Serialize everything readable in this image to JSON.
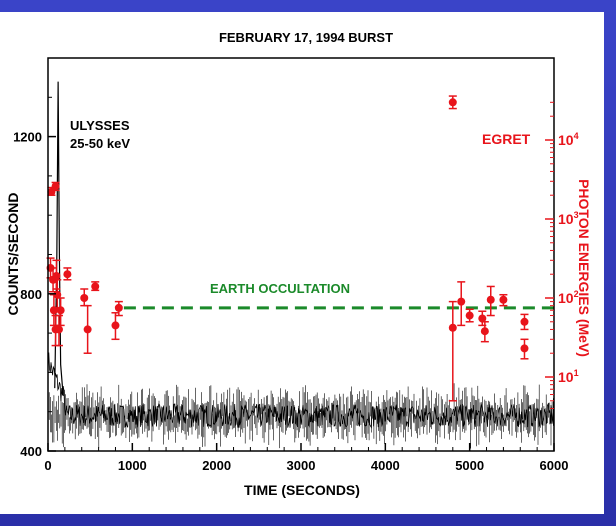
{
  "chart_data": {
    "type": "scatter",
    "title": "FEBRUARY 17, 1994 BURST",
    "xlabel": "TIME (SECONDS)",
    "ylabel": "COUNTS/SECOND",
    "y2label": "PHOTON ENERGIES (MeV)",
    "xlim": [
      0,
      6000
    ],
    "ylim": [
      400,
      1400
    ],
    "y2_scale": "log",
    "x_ticks": [
      "0",
      "1000",
      "2000",
      "3000",
      "4000",
      "5000",
      "6000"
    ],
    "x_tick_values": [
      0,
      1000,
      2000,
      3000,
      4000,
      5000,
      6000
    ],
    "y_ticks": [
      "400",
      "800",
      "1200"
    ],
    "y_tick_values": [
      400,
      800,
      1200
    ],
    "y2_ticks": [
      {
        "base": "10",
        "exp": "1",
        "value": 10
      },
      {
        "base": "10",
        "exp": "2",
        "value": 100
      },
      {
        "base": "10",
        "exp": "3",
        "value": 1000
      },
      {
        "base": "10",
        "exp": "4",
        "value": 10000
      }
    ],
    "annotations": {
      "ulysses_line1": "ULYSSES",
      "ulysses_line2": "25-50 keV",
      "egret": "EGRET",
      "earth_occultation": "EARTH OCCULTATION"
    },
    "earth_occultation": {
      "x_start": 900,
      "x_end": 6000,
      "y2": 75
    },
    "ulysses_baseline_counts": 490,
    "ulysses_peak": {
      "x": 120,
      "counts": 1340
    },
    "egret_points": [
      {
        "x": 40,
        "y2": 2200,
        "low": 2000,
        "high": 2500
      },
      {
        "x": 90,
        "y2": 2600,
        "low": 2300,
        "high": 2900
      },
      {
        "x": 30,
        "y2": 240,
        "low": 180,
        "high": 320
      },
      {
        "x": 60,
        "y2": 170,
        "low": 120,
        "high": 240
      },
      {
        "x": 100,
        "y2": 190,
        "low": 130,
        "high": 300
      },
      {
        "x": 110,
        "y2": 110,
        "low": 70,
        "high": 170
      },
      {
        "x": 70,
        "y2": 70,
        "low": 45,
        "high": 110
      },
      {
        "x": 150,
        "y2": 70,
        "low": 45,
        "high": 100
      },
      {
        "x": 90,
        "y2": 40,
        "low": 25,
        "high": 60
      },
      {
        "x": 130,
        "y2": 40,
        "low": 25,
        "high": 60
      },
      {
        "x": 230,
        "y2": 200,
        "low": 170,
        "high": 240
      },
      {
        "x": 430,
        "y2": 100,
        "low": 80,
        "high": 130
      },
      {
        "x": 560,
        "y2": 140,
        "low": 125,
        "high": 160
      },
      {
        "x": 470,
        "y2": 40,
        "low": 20,
        "high": 80
      },
      {
        "x": 840,
        "y2": 75,
        "low": 60,
        "high": 90
      },
      {
        "x": 800,
        "y2": 45,
        "low": 30,
        "high": 65
      },
      {
        "x": 4800,
        "y2": 30000,
        "low": 25000,
        "high": 36000
      },
      {
        "x": 4800,
        "y2": 42,
        "low": 5,
        "high": 90
      },
      {
        "x": 4900,
        "y2": 90,
        "low": 45,
        "high": 160
      },
      {
        "x": 5000,
        "y2": 60,
        "low": 50,
        "high": 72
      },
      {
        "x": 5150,
        "y2": 55,
        "low": 45,
        "high": 68
      },
      {
        "x": 5180,
        "y2": 38,
        "low": 28,
        "high": 50
      },
      {
        "x": 5250,
        "y2": 95,
        "low": 60,
        "high": 140
      },
      {
        "x": 5400,
        "y2": 95,
        "low": 80,
        "high": 110
      },
      {
        "x": 5650,
        "y2": 50,
        "low": 40,
        "high": 62
      },
      {
        "x": 5650,
        "y2": 23,
        "low": 17,
        "high": 30
      }
    ],
    "colors": {
      "egret": "#e8141b",
      "occultation": "#1b8a2a",
      "ulysses": "#000000",
      "frame": "#2c34b0"
    }
  }
}
